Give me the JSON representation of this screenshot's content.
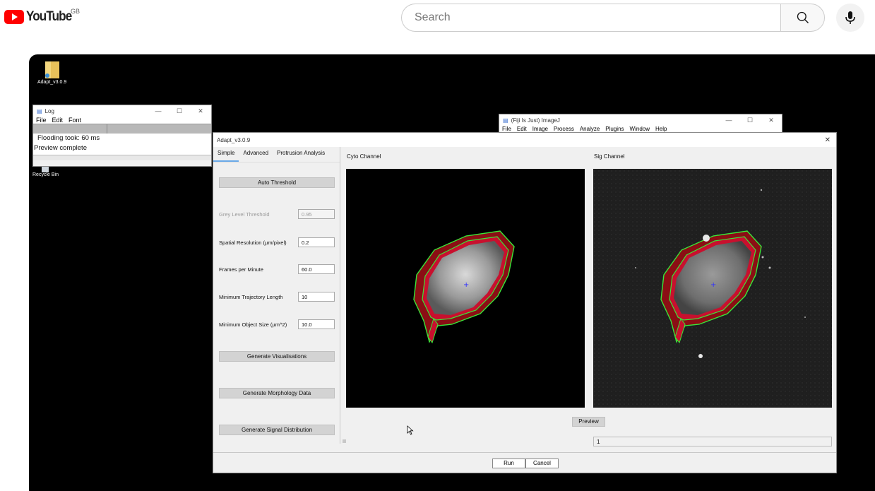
{
  "youtube": {
    "logo_text": "YouTube",
    "country_code": "GB",
    "search_placeholder": "Search"
  },
  "desktop": {
    "icons": [
      {
        "label": "Adapt_v3.0.9"
      },
      {
        "label": "Recycle Bin"
      }
    ]
  },
  "log_window": {
    "title": "Log",
    "menu": [
      "File",
      "Edit",
      "Font"
    ],
    "lines": [
      "Flooding took: 60 ms",
      "Preview complete"
    ]
  },
  "fiji_window": {
    "title": "(Fiji Is Just) ImageJ",
    "menu": [
      "File",
      "Edit",
      "Image",
      "Process",
      "Analyze",
      "Plugins",
      "Window",
      "Help"
    ]
  },
  "adapt_window": {
    "title": "Adapt_v3.0.9",
    "close_glyph": "✕",
    "tabs": [
      "Simple",
      "Advanced",
      "Protrusion Analysis"
    ],
    "auto_threshold": "Auto Threshold",
    "fields": [
      {
        "label": "Grey Level Threshold",
        "value": "0.95",
        "disabled": true
      },
      {
        "label": "Spatial Resolution (µm/pixel)",
        "value": "0.2"
      },
      {
        "label": "Frames per Minute",
        "value": "60.0"
      },
      {
        "label": "Minimum Trajectory Length",
        "value": "10"
      },
      {
        "label": "Minimum Object Size (µm^2)",
        "value": "10.0"
      }
    ],
    "action_buttons": [
      "Generate Visualisations",
      "Generate Morphology Data",
      "Generate Signal Distribution"
    ],
    "cyto_label": "Cyto Channel",
    "sig_label": "Sig Channel",
    "preview": "Preview",
    "frame_value": "1",
    "run": "Run",
    "cancel": "Cancel"
  },
  "colors": {
    "youtube_red": "#ff0000",
    "outline_green": "#39e639",
    "outline_red": "#c8102e"
  }
}
